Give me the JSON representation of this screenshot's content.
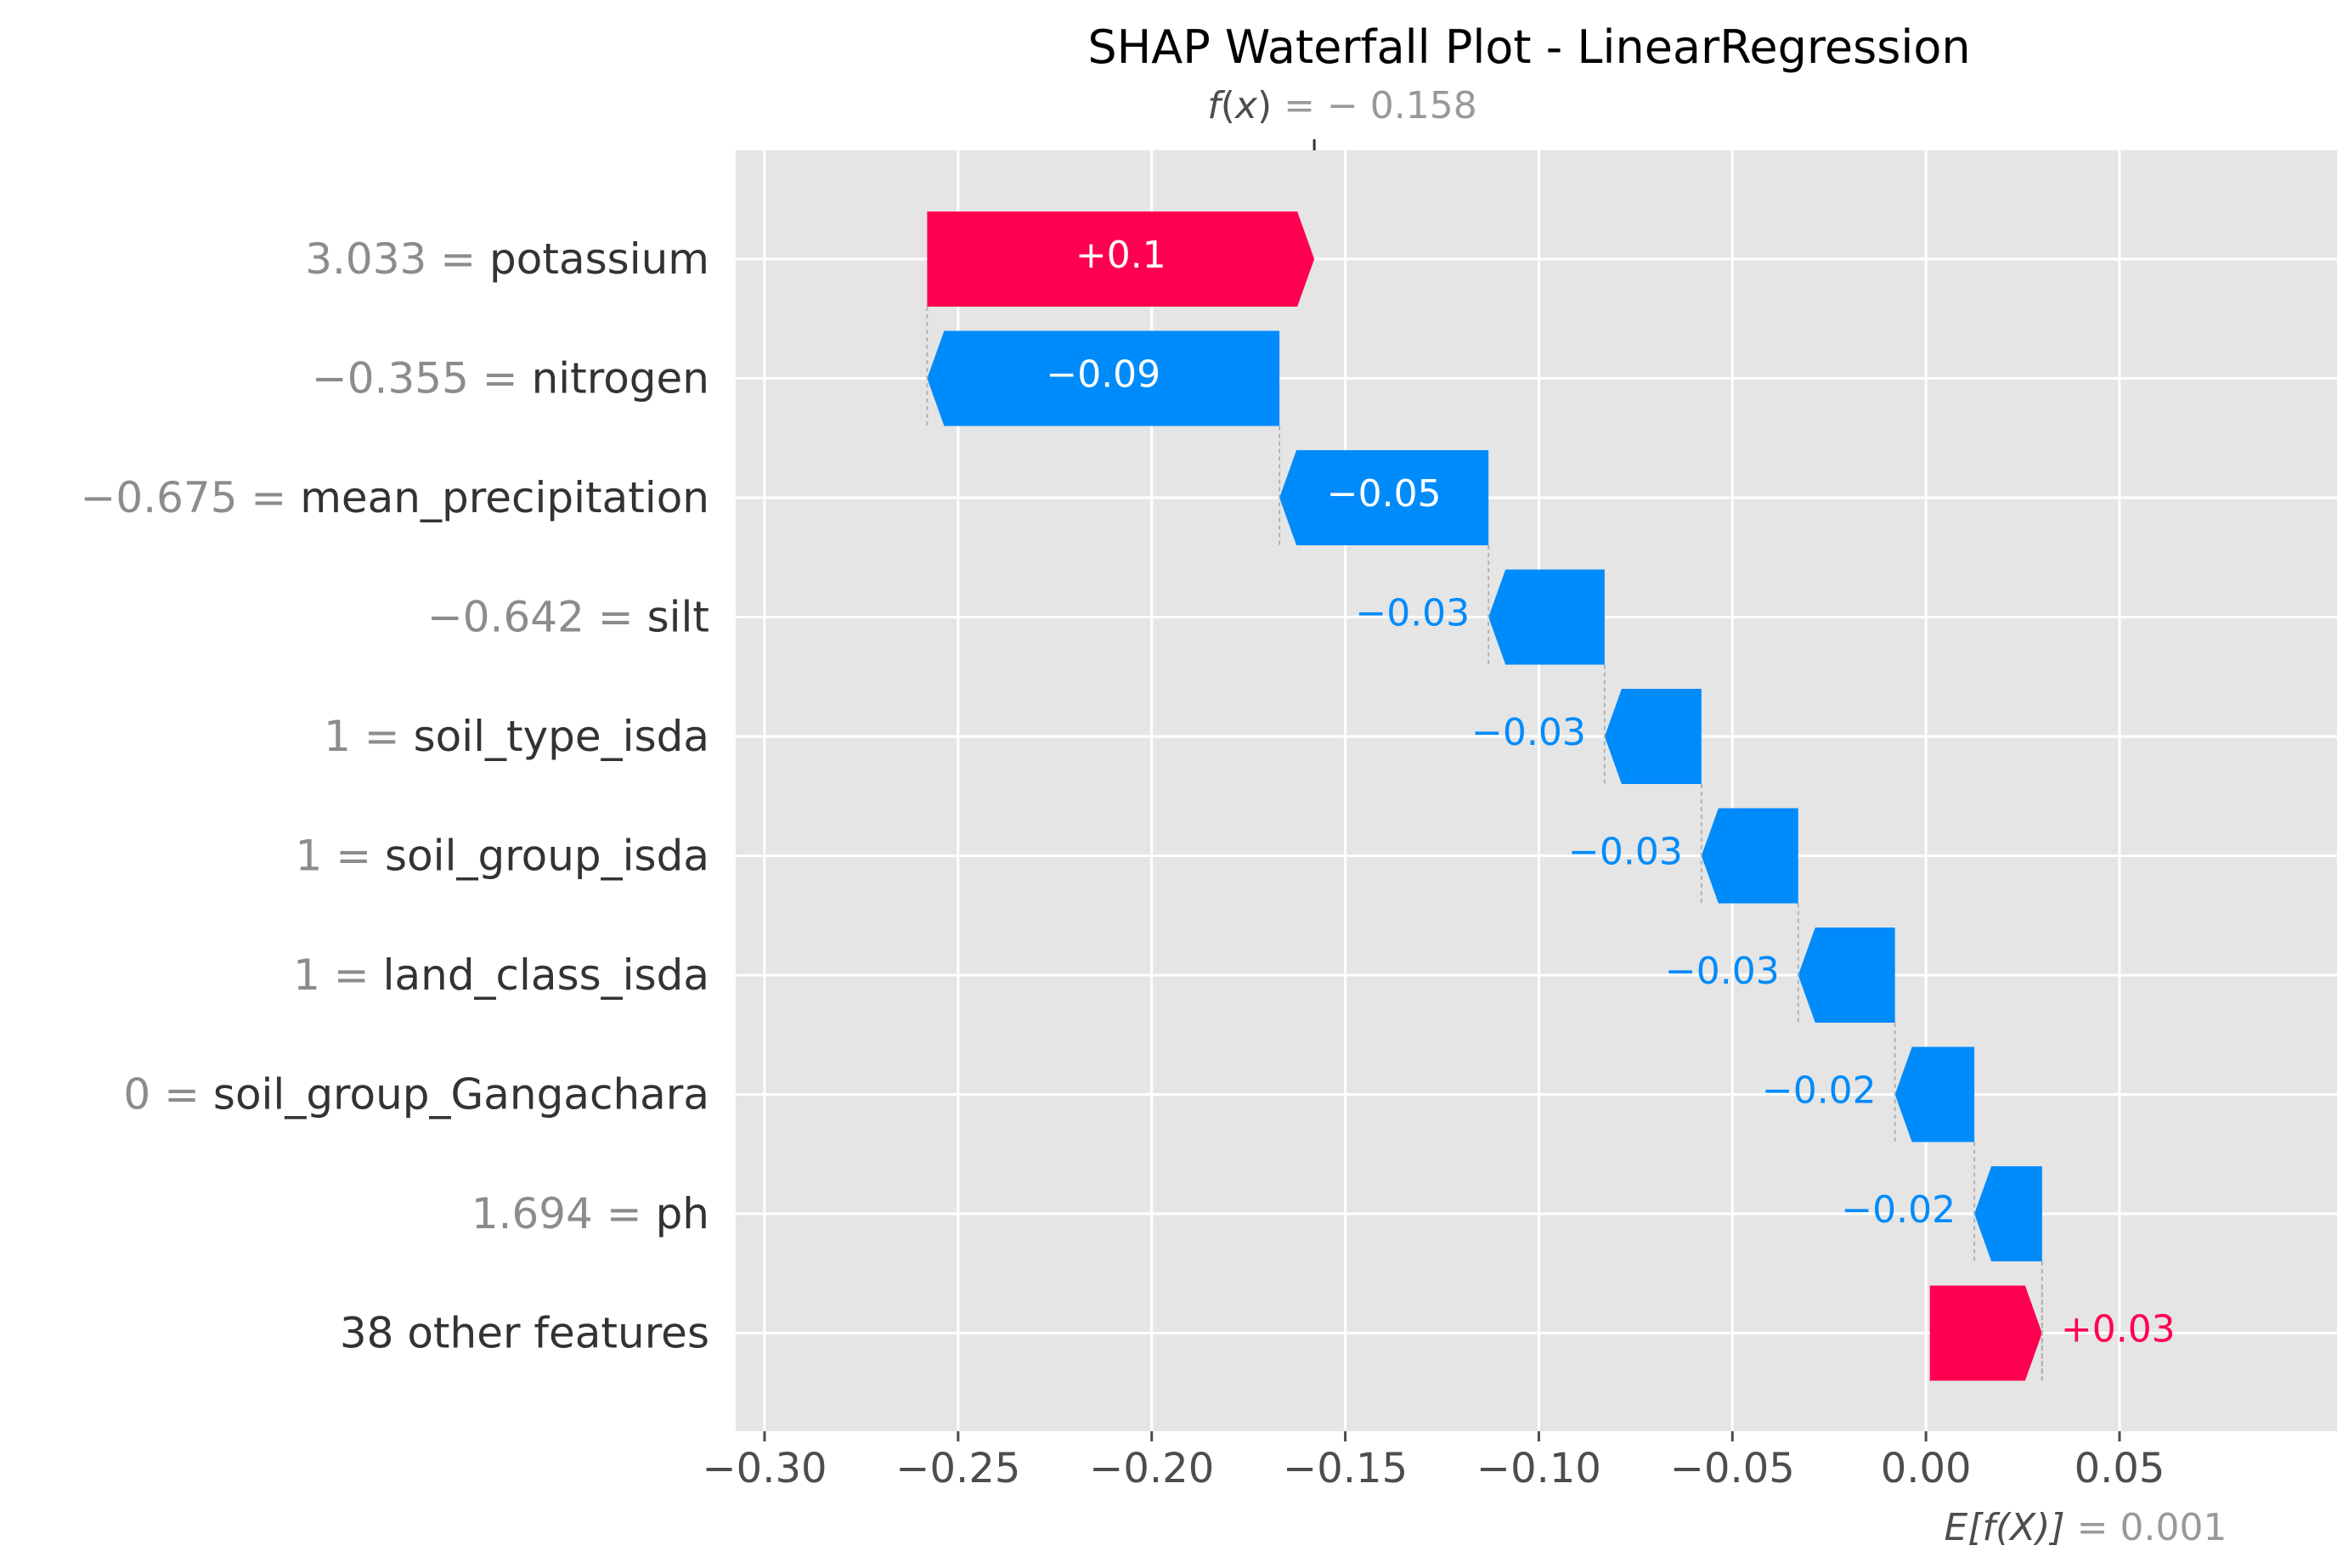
{
  "chart_data": {
    "type": "bar",
    "title": "SHAP Waterfall Plot - LinearRegression",
    "fx": {
      "label_func": "f",
      "label_arg": "x",
      "equals": "= − 0.158",
      "value": -0.158
    },
    "base": {
      "label": "E[f(X)]",
      "equals": "= 0.001",
      "value": 0.001
    },
    "xlim": [
      -0.307,
      0.081
    ],
    "xticks": [
      -0.3,
      -0.25,
      -0.2,
      -0.15,
      -0.1,
      -0.05,
      0.0,
      0.05
    ],
    "xtick_labels": [
      "−0.30",
      "−0.25",
      "−0.20",
      "−0.15",
      "−0.10",
      "−0.05",
      "0.00",
      "0.05"
    ],
    "grid": true,
    "features": [
      {
        "value_text": "3.033 = ",
        "name": "potassium",
        "shap": 0.1,
        "start": -0.258,
        "end": -0.158,
        "label": "+0.1"
      },
      {
        "value_text": "−0.355 = ",
        "name": "nitrogen",
        "shap": -0.09,
        "start": -0.167,
        "end": -0.258,
        "label": "−0.09"
      },
      {
        "value_text": "−0.675 = ",
        "name": "mean_precipitation",
        "shap": -0.05,
        "start": -0.113,
        "end": -0.167,
        "label": "−0.05"
      },
      {
        "value_text": "−0.642 = ",
        "name": "silt",
        "shap": -0.03,
        "start": -0.083,
        "end": -0.113,
        "label": "−0.03"
      },
      {
        "value_text": "1 = ",
        "name": "soil_type_isda",
        "shap": -0.03,
        "start": -0.058,
        "end": -0.083,
        "label": "−0.03"
      },
      {
        "value_text": "1 = ",
        "name": "soil_group_isda",
        "shap": -0.03,
        "start": -0.033,
        "end": -0.058,
        "label": "−0.03"
      },
      {
        "value_text": "1 = ",
        "name": "land_class_isda",
        "shap": -0.03,
        "start": -0.008,
        "end": -0.033,
        "label": "−0.03"
      },
      {
        "value_text": "0 = ",
        "name": "soil_group_Gangachara",
        "shap": -0.02,
        "start": 0.0125,
        "end": -0.008,
        "label": "−0.02"
      },
      {
        "value_text": "1.694 = ",
        "name": "ph",
        "shap": -0.02,
        "start": 0.03,
        "end": 0.0125,
        "label": "−0.02"
      },
      {
        "value_text": "",
        "name": "38 other features",
        "shap": 0.03,
        "start": 0.001,
        "end": 0.03,
        "label": "+0.03"
      }
    ],
    "colors": {
      "positive": "#ff0051",
      "negative": "#008bfb",
      "background": "#e5e5e5",
      "grid": "#ffffff"
    }
  }
}
